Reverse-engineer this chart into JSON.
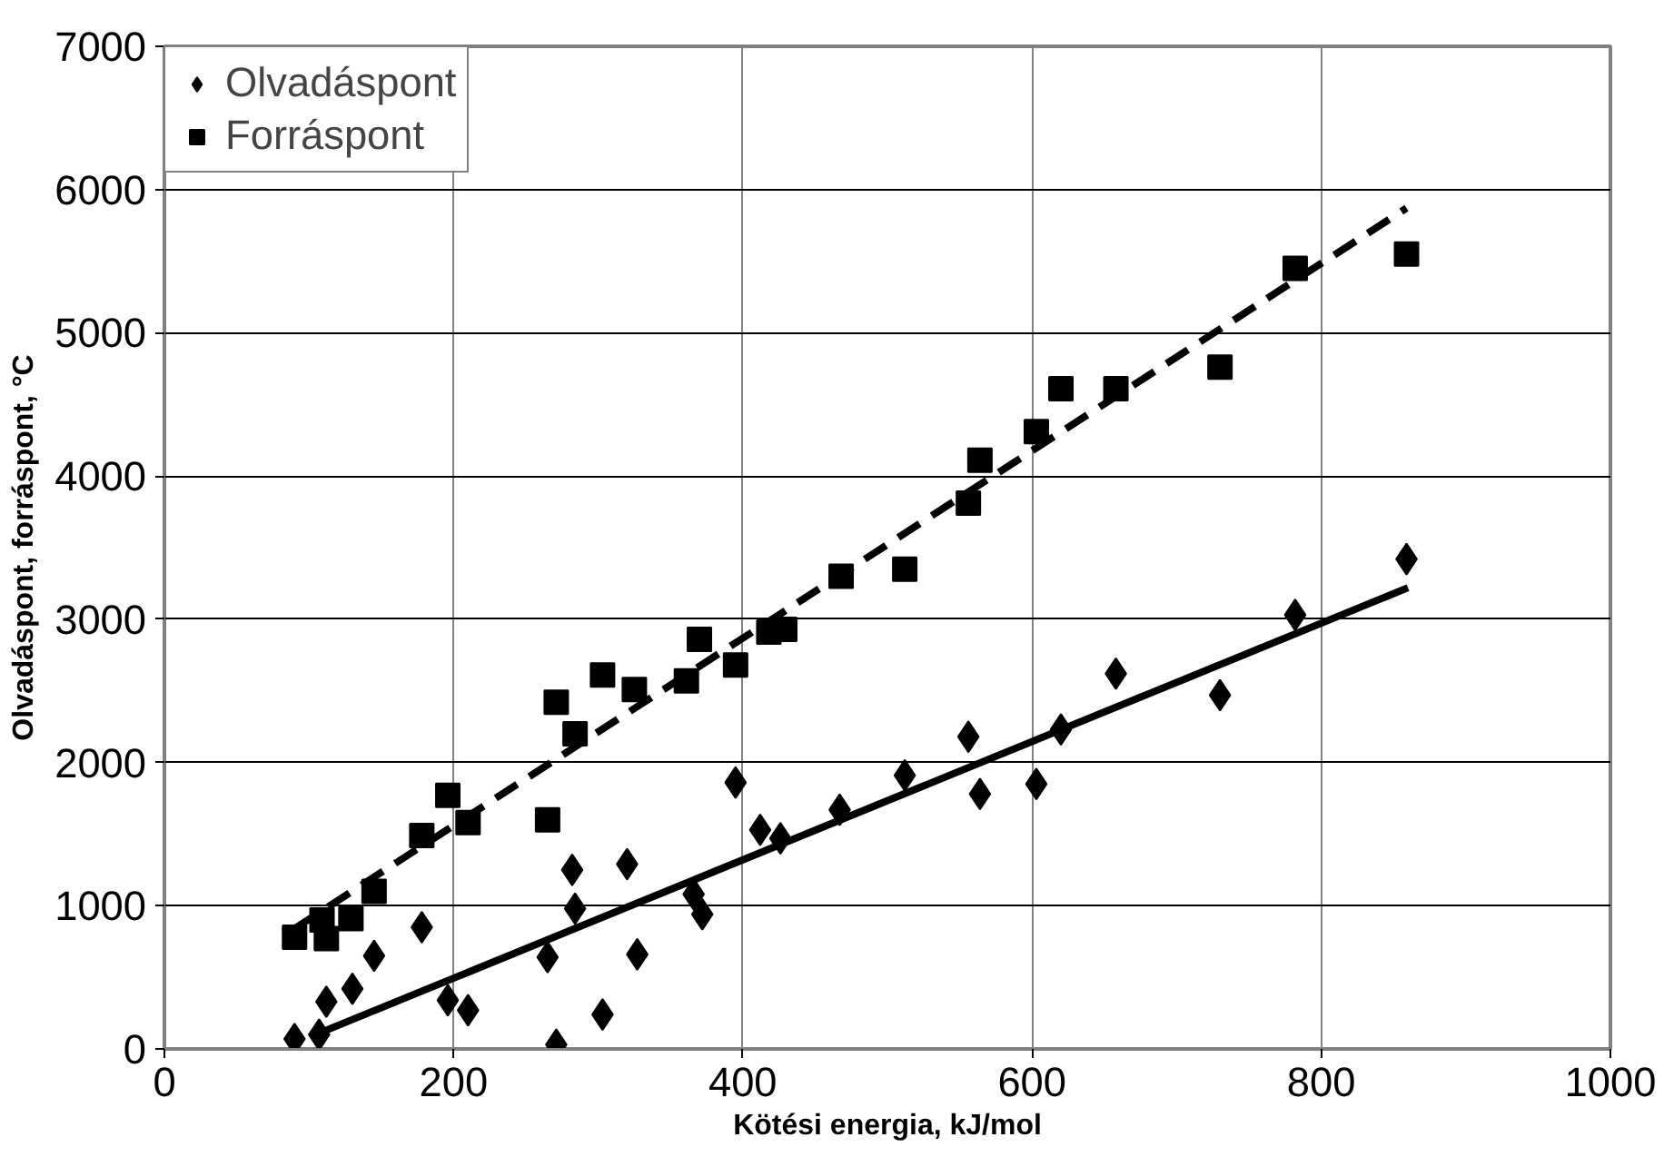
{
  "chart_data": {
    "type": "scatter",
    "xlabel": "Kötési energia, kJ/mol",
    "ylabel": "Olvadáspont, forráspont, °C",
    "xlim": [
      0,
      1000
    ],
    "xticks": [
      0,
      200,
      400,
      600,
      800,
      1000
    ],
    "ylim": [
      0,
      7000
    ],
    "yticks": [
      0,
      1000,
      2000,
      3000,
      4000,
      5000,
      6000,
      7000
    ],
    "grid": true,
    "legend": "top left",
    "series": [
      {
        "name": "Olvadáspont",
        "marker": "diamond",
        "color": "#000000",
        "x": [
          90,
          107,
          112,
          130,
          145,
          178,
          196,
          210,
          265,
          271,
          282,
          284,
          303,
          320,
          327,
          366,
          372,
          395,
          412,
          426,
          467,
          512,
          556,
          564,
          603,
          620,
          658,
          730,
          782,
          859
        ],
        "values": [
          70,
          100,
          330,
          420,
          650,
          850,
          340,
          270,
          640,
          30,
          1250,
          980,
          240,
          1290,
          660,
          1080,
          940,
          1860,
          1530,
          1470,
          1670,
          1910,
          2180,
          1780,
          1850,
          2230,
          2620,
          2470,
          3030,
          3420
        ]
      },
      {
        "name": "Forráspont",
        "marker": "square",
        "color": "#000000",
        "x": [
          90,
          109,
          112,
          129,
          145,
          178,
          196,
          210,
          265,
          271,
          284,
          303,
          325,
          361,
          370,
          395,
          418,
          429,
          468,
          512,
          556,
          564,
          603,
          620,
          658,
          730,
          782,
          859
        ],
        "values": [
          780,
          900,
          770,
          910,
          1100,
          1490,
          1770,
          1580,
          1600,
          2420,
          2200,
          2610,
          2510,
          2570,
          2860,
          2680,
          2910,
          2930,
          3300,
          3350,
          3810,
          4110,
          4310,
          4610,
          4610,
          4760,
          5450,
          5550
        ]
      },
      {
        "type": "line",
        "line_style": "solid",
        "color": "#000000",
        "x": [
          107,
          860
        ],
        "values": [
          110,
          3220
        ]
      },
      {
        "type": "line",
        "line_style": "dashed",
        "color": "#000000",
        "x": [
          90,
          859
        ],
        "values": [
          840,
          5870
        ]
      }
    ]
  }
}
